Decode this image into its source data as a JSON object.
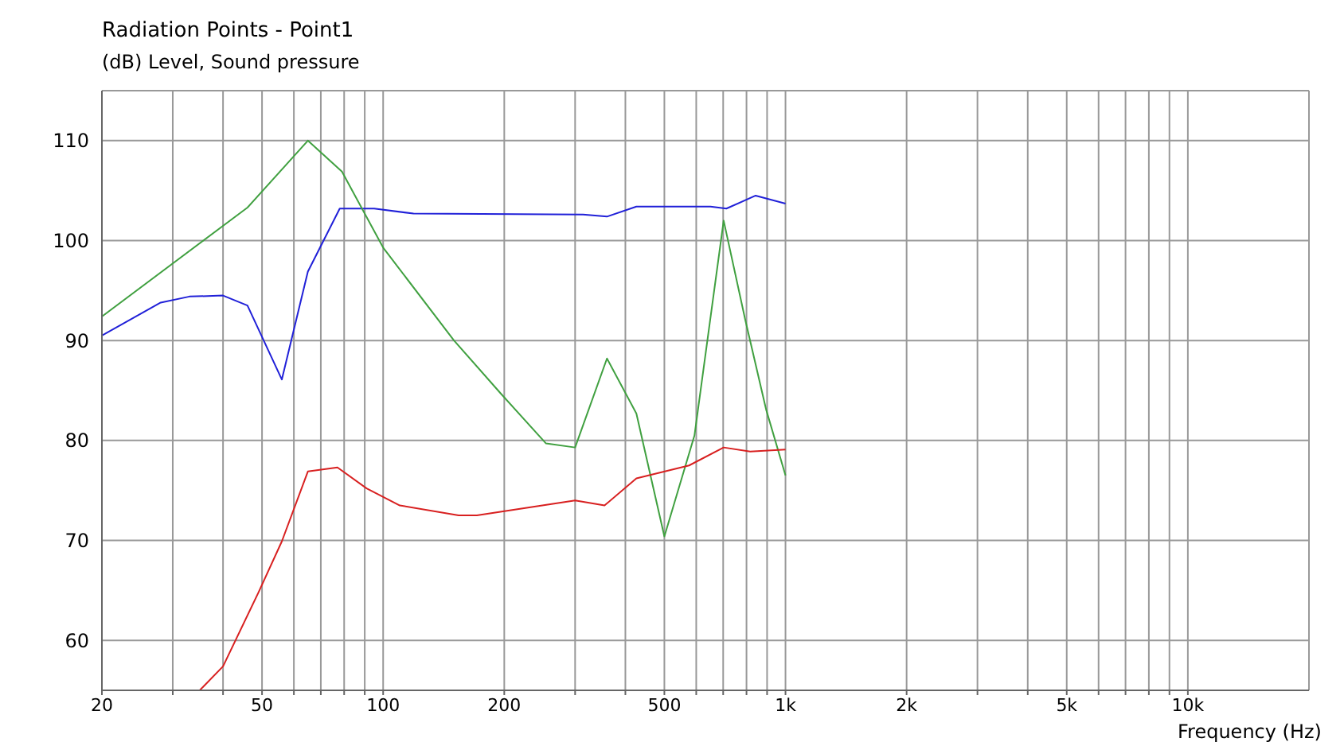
{
  "chart_data": {
    "type": "line",
    "title": "Radiation Points - Point1",
    "ylabel": "(dB)  Level, Sound pressure",
    "xlabel": "Frequency  (Hz)",
    "log": "x",
    "grid": true,
    "legend": false,
    "marker": "none",
    "line_style": "solid",
    "xlim": [
      20,
      20000
    ],
    "ylim": [
      55,
      115
    ],
    "xticks": [
      20,
      {
        "value": 30,
        "label": null
      },
      {
        "value": 40,
        "label": null
      },
      50,
      {
        "value": 60,
        "label": null
      },
      {
        "value": 70,
        "label": null
      },
      {
        "value": 80,
        "label": null
      },
      {
        "value": 90,
        "label": null
      },
      100,
      200,
      {
        "value": 300,
        "label": null
      },
      {
        "value": 400,
        "label": null
      },
      500,
      {
        "value": 600,
        "label": null
      },
      {
        "value": 700,
        "label": null
      },
      {
        "value": 800,
        "label": null
      },
      {
        "value": 900,
        "label": null
      },
      {
        "value": 1000,
        "label": "1k"
      },
      {
        "value": 2000,
        "label": "2k"
      },
      {
        "value": 3000,
        "label": null
      },
      {
        "value": 4000,
        "label": null
      },
      {
        "value": 5000,
        "label": "5k"
      },
      {
        "value": 6000,
        "label": null
      },
      {
        "value": 7000,
        "label": null
      },
      {
        "value": 8000,
        "label": null
      },
      {
        "value": 9000,
        "label": null
      },
      {
        "value": 10000,
        "label": "10k"
      }
    ],
    "yticks": [
      60,
      70,
      80,
      90,
      100,
      110
    ],
    "series": [
      {
        "color": "#2020d8",
        "x": [
          20,
          28,
          33,
          40,
          46,
          56,
          65,
          78,
          95,
          119,
          314,
          360,
          426,
          651,
          713,
          843,
          1000
        ],
        "values": [
          90.5,
          93.8,
          94.4,
          94.5,
          93.5,
          86.1,
          96.9,
          103.2,
          103.2,
          102.7,
          102.6,
          102.4,
          103.4,
          103.4,
          103.2,
          104.5,
          103.7
        ]
      },
      {
        "color": "#40a040",
        "x": [
          20,
          46,
          65,
          79,
          100,
          150,
          196,
          254,
          300,
          360,
          426,
          500,
          594,
          702,
          793,
          895,
          1000
        ],
        "values": [
          92.4,
          103.3,
          110,
          106.9,
          99.3,
          90,
          84.7,
          79.7,
          79.3,
          88.2,
          82.7,
          70.4,
          80.5,
          102,
          92.2,
          83.1,
          76.5
        ]
      },
      {
        "color": "#d82020",
        "x": [
          35,
          40,
          49,
          56,
          65,
          77,
          91,
          110,
          154,
          171,
          300,
          355,
          426,
          576,
          702,
          817,
          1000
        ],
        "values": [
          55,
          57.4,
          64.8,
          69.9,
          76.9,
          77.3,
          75.2,
          73.5,
          72.5,
          72.5,
          74,
          73.5,
          76.2,
          77.5,
          79.3,
          78.9,
          79.1
        ]
      }
    ]
  }
}
